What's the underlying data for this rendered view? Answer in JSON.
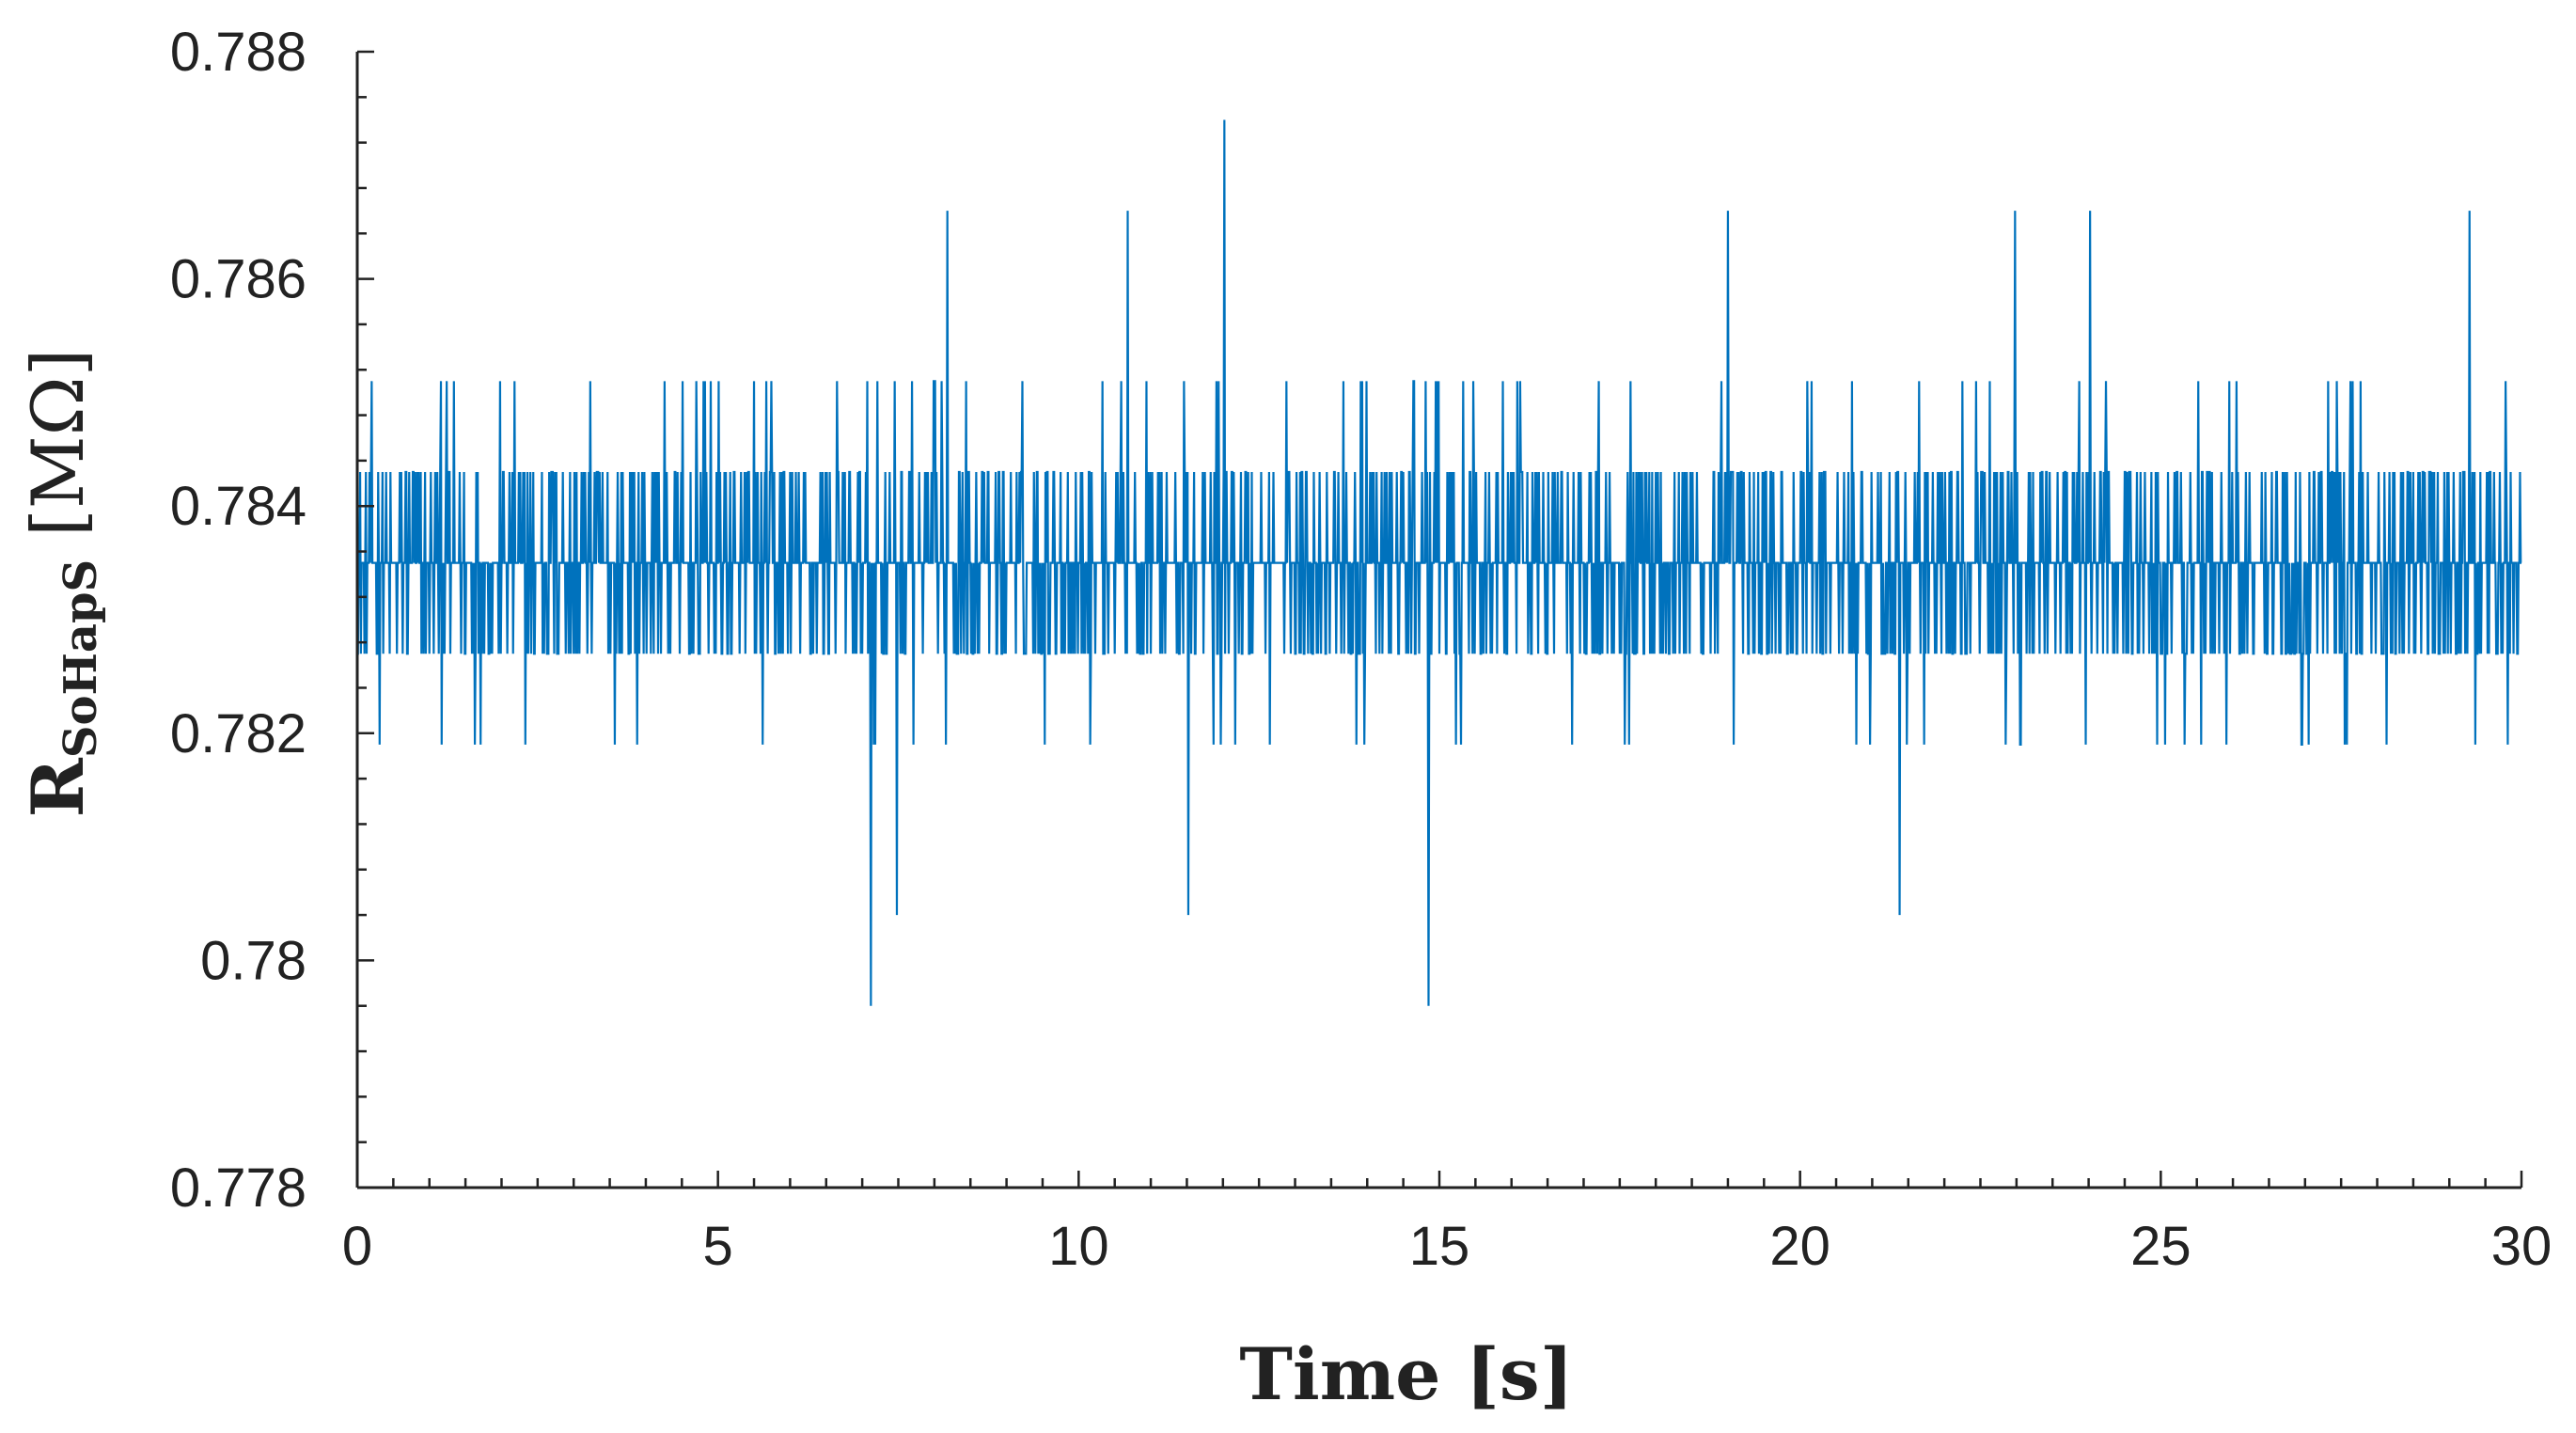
{
  "chart_data": {
    "type": "line",
    "title": "",
    "xlabel": "Time [s]",
    "ylabel": {
      "main": "R",
      "subscript": "SoHapS",
      "unit": "[MΩ]"
    },
    "xlim": [
      0,
      30
    ],
    "ylim": [
      0.778,
      0.788
    ],
    "x_ticks": [
      0,
      5,
      10,
      15,
      20,
      25,
      30
    ],
    "x_tick_labels": [
      "0",
      "5",
      "10",
      "15",
      "20",
      "25",
      "30"
    ],
    "y_ticks": [
      0.778,
      0.78,
      0.782,
      0.784,
      0.786,
      0.788
    ],
    "y_tick_labels": [
      "0.778",
      "0.78",
      "0.782",
      "0.784",
      "0.786",
      "0.788"
    ],
    "grid": false,
    "line_color": "#0072BD",
    "series": [
      {
        "levels": [
          0.7796,
          0.7804,
          0.7812,
          0.7819,
          0.7827,
          0.7835,
          0.7843,
          0.7851,
          0.7858,
          0.7866,
          0.7874
        ],
        "sample_interval_s": 0.01,
        "duration_s": 30,
        "notable_points": [
          {
            "x": 7.12,
            "y": 0.7796
          },
          {
            "x": 14.85,
            "y": 0.7796
          },
          {
            "x": 7.48,
            "y": 0.7804
          },
          {
            "x": 11.52,
            "y": 0.7804
          },
          {
            "x": 21.38,
            "y": 0.7804
          },
          {
            "x": 12.02,
            "y": 0.7874
          },
          {
            "x": 8.18,
            "y": 0.7866
          },
          {
            "x": 10.68,
            "y": 0.7866
          },
          {
            "x": 19.0,
            "y": 0.7866
          },
          {
            "x": 22.98,
            "y": 0.7866
          },
          {
            "x": 24.02,
            "y": 0.7866
          },
          {
            "x": 29.28,
            "y": 0.7866
          }
        ]
      }
    ]
  }
}
